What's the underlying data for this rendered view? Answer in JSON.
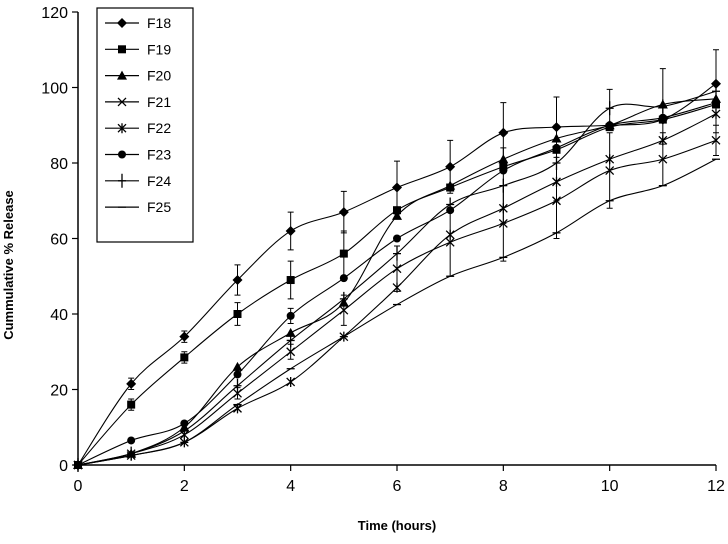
{
  "chart_data": {
    "type": "line",
    "title": "",
    "xlabel": "Time (hours)",
    "ylabel": "Cummulative % Release",
    "xlim": [
      0,
      12
    ],
    "ylim": [
      0,
      120
    ],
    "xticks": [
      0,
      2,
      4,
      6,
      8,
      10,
      12
    ],
    "yticks": [
      0,
      20,
      40,
      60,
      80,
      100,
      120
    ],
    "grid": false,
    "legend_position": "top-left",
    "series": [
      {
        "name": "F18",
        "marker": "diamond",
        "x": [
          0,
          1,
          2,
          3,
          4,
          5,
          6,
          7,
          8,
          9,
          10,
          11,
          12
        ],
        "y": [
          0,
          21.5,
          34,
          49,
          62,
          67,
          73.5,
          79,
          88,
          89.5,
          90,
          91.5,
          101
        ],
        "err": [
          0,
          1.5,
          1.5,
          4,
          5,
          5.5,
          7,
          7,
          8,
          8,
          0,
          0,
          0
        ]
      },
      {
        "name": "F19",
        "marker": "square",
        "x": [
          0,
          1,
          2,
          3,
          4,
          5,
          6,
          7,
          8,
          9,
          10,
          11,
          12
        ],
        "y": [
          0,
          16,
          28.5,
          40,
          49,
          56,
          67.5,
          73.5,
          79,
          83.5,
          89.5,
          91.5,
          95.5
        ],
        "err": [
          0,
          1.5,
          1.5,
          3,
          5,
          6,
          0,
          0,
          0,
          0,
          0,
          0,
          0
        ]
      },
      {
        "name": "F20",
        "marker": "triangle",
        "x": [
          0,
          1,
          2,
          3,
          4,
          5,
          6,
          7,
          8,
          9,
          10,
          11,
          12
        ],
        "y": [
          0,
          3,
          10,
          26,
          35,
          43,
          66,
          74,
          81,
          86.5,
          90,
          95.5,
          97
        ],
        "err": [
          0,
          0,
          0,
          0,
          0,
          0,
          0,
          0,
          0,
          0,
          0,
          0,
          0
        ]
      },
      {
        "name": "F21",
        "marker": "x",
        "x": [
          0,
          1,
          2,
          3,
          4,
          5,
          6,
          7,
          8,
          9,
          10,
          11,
          12
        ],
        "y": [
          0,
          3,
          8,
          19,
          30,
          41,
          52,
          59,
          64,
          70,
          78,
          81,
          86
        ],
        "err": [
          0,
          0,
          0,
          1.5,
          2,
          4,
          6,
          9,
          10,
          10,
          10,
          7,
          4
        ]
      },
      {
        "name": "F22",
        "marker": "asterisk",
        "x": [
          0,
          1,
          2,
          3,
          4,
          5,
          6,
          7,
          8,
          9,
          10,
          11,
          12
        ],
        "y": [
          0,
          2.5,
          6,
          15,
          22,
          34,
          47,
          61,
          68,
          75,
          81,
          86,
          93
        ],
        "err": [
          0,
          0,
          0,
          0,
          0,
          0,
          0,
          0,
          0,
          0,
          0,
          0,
          0
        ]
      },
      {
        "name": "F23",
        "marker": "circle",
        "x": [
          0,
          1,
          2,
          3,
          4,
          5,
          6,
          7,
          8,
          9,
          10,
          11,
          12
        ],
        "y": [
          0,
          6.5,
          11,
          24,
          39.5,
          49.5,
          60,
          67.5,
          78,
          84,
          90,
          92,
          96
        ],
        "err": [
          0,
          0,
          0,
          0,
          2,
          0,
          0,
          0,
          0,
          0,
          0,
          0,
          0
        ]
      },
      {
        "name": "F24",
        "marker": "plus",
        "x": [
          0,
          1,
          2,
          3,
          4,
          5,
          6,
          7,
          8,
          9,
          10,
          11,
          12
        ],
        "y": [
          0,
          3,
          9,
          21,
          33,
          44,
          56,
          69,
          74,
          80,
          94.5,
          95,
          99
        ],
        "err": [
          0,
          0,
          0,
          0,
          0,
          0,
          0,
          0,
          10,
          10,
          5,
          10,
          11
        ]
      },
      {
        "name": "F25",
        "marker": "dash",
        "x": [
          0,
          1,
          2,
          3,
          4,
          5,
          6,
          7,
          8,
          9,
          10,
          11,
          12
        ],
        "y": [
          0,
          2.5,
          6,
          16,
          25.5,
          34,
          42.5,
          50,
          55,
          61.5,
          70,
          74,
          81
        ],
        "err": [
          0,
          0,
          0,
          0,
          0,
          0,
          0,
          0,
          0,
          0,
          0,
          0,
          0
        ]
      }
    ]
  }
}
